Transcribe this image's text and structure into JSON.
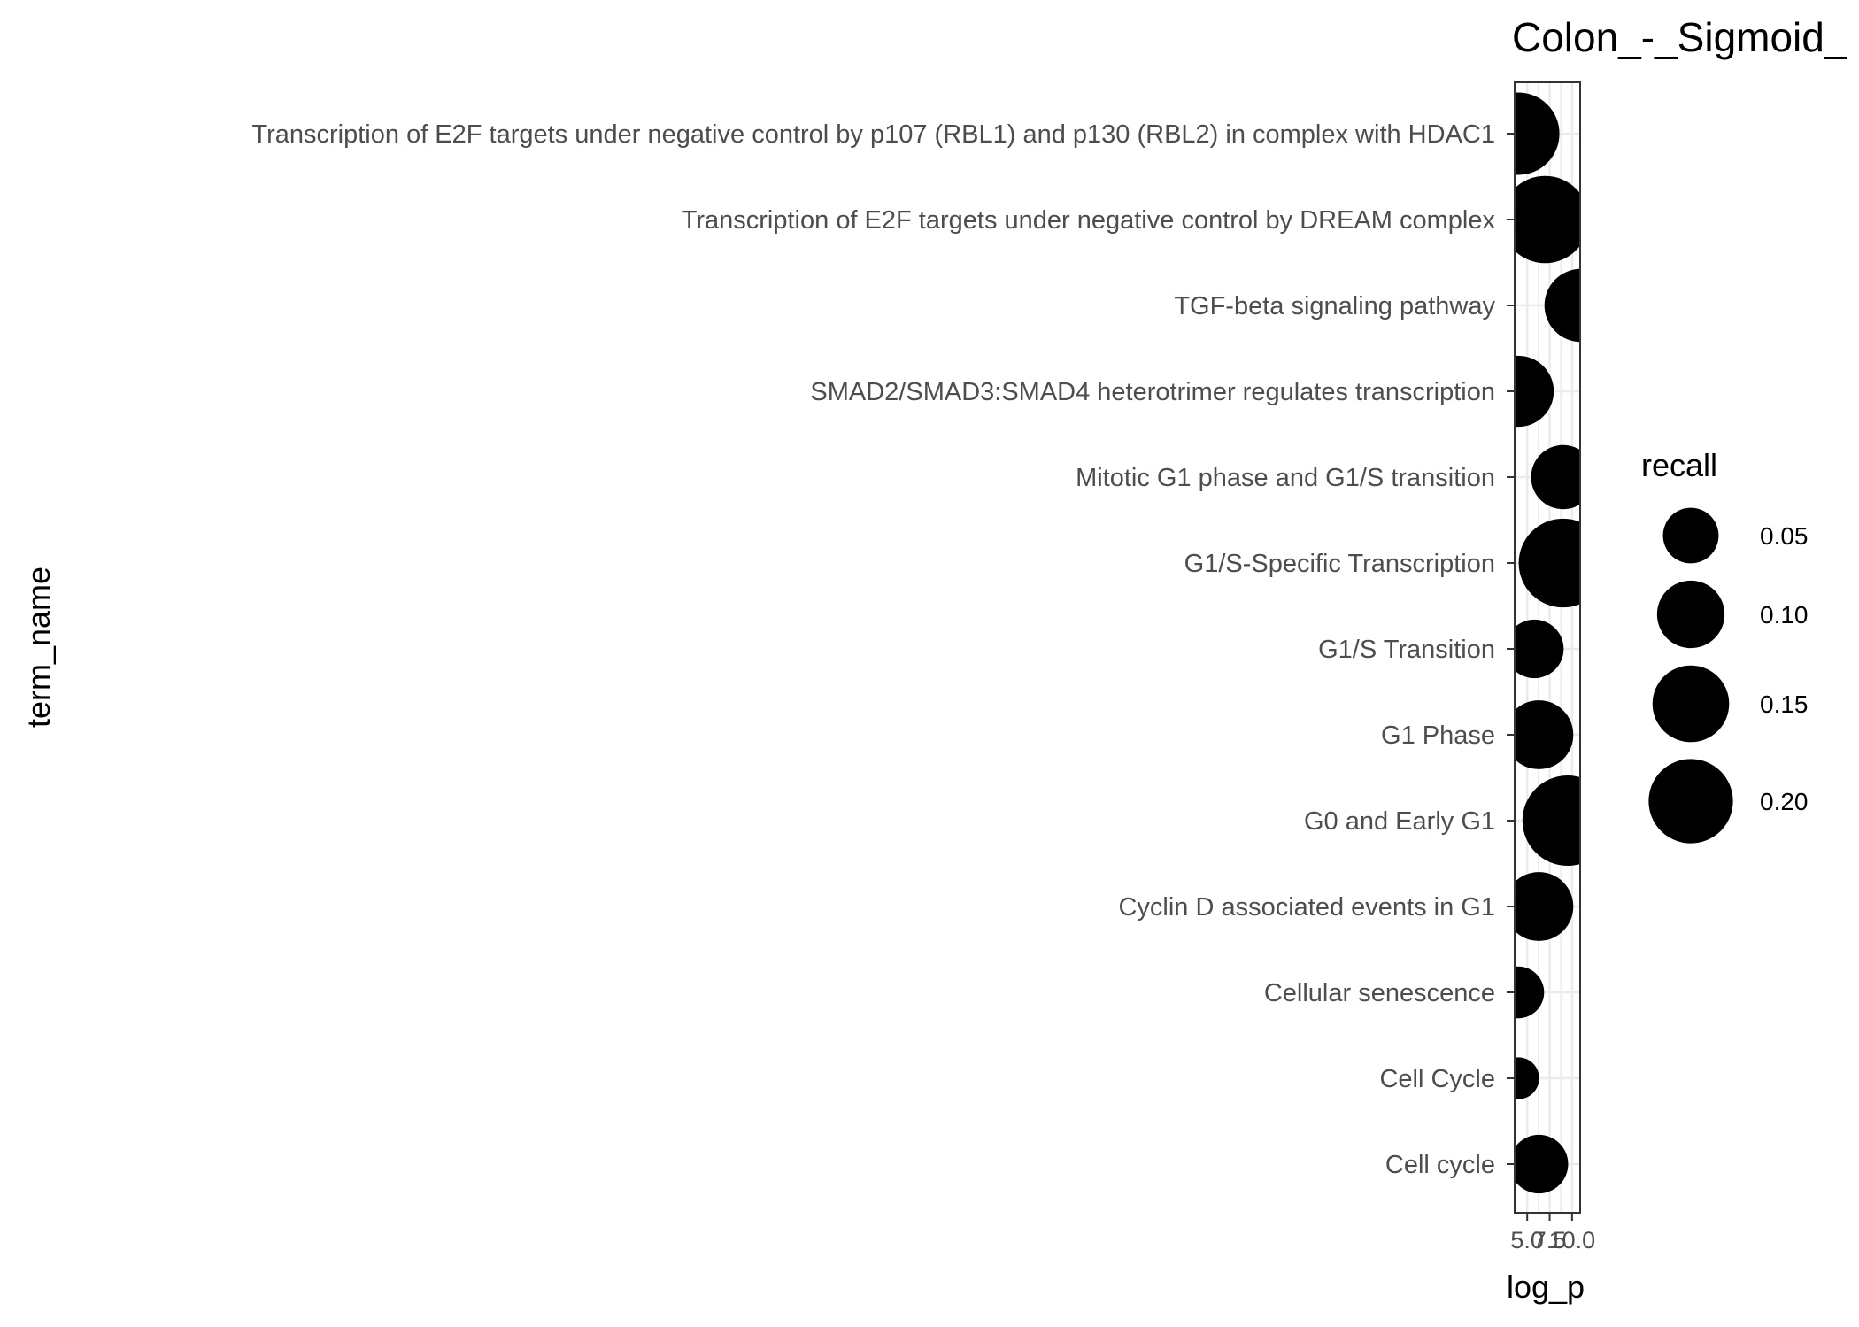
{
  "chart_data": {
    "type": "scatter",
    "title": "Colon_-_Sigmoid_",
    "xlabel": "log_p",
    "ylabel": "term_name",
    "xticks": [
      "5.0",
      "7.5",
      "10.0"
    ],
    "grid": true,
    "categories": [
      "Transcription of E2F targets under negative control by p107 (RBL1) and p130 (RBL2) in complex with HDAC1",
      "Transcription of E2F targets under negative control by DREAM complex",
      "TGF-beta signaling pathway",
      "SMAD2/SMAD3:SMAD4 heterotrimer regulates transcription",
      "Mitotic G1 phase and G1/S transition",
      "G1/S-Specific Transcription",
      "G1/S Transition",
      "G1 Phase",
      "G0 and Early G1",
      "Cyclin D associated events in G1",
      "Cellular senescence",
      "Cell Cycle",
      "Cell cycle"
    ],
    "points": [
      {
        "term": "Transcription of E2F targets under negative control by p107 (RBL1) and p130 (RBL2) in complex with HDAC1",
        "log_p": 4.0,
        "recall": 0.16
      },
      {
        "term": "Transcription of E2F targets under negative control by DREAM complex",
        "log_p": 7.0,
        "recall": 0.19
      },
      {
        "term": "TGF-beta signaling pathway",
        "log_p": 11.0,
        "recall": 0.11
      },
      {
        "term": "SMAD2/SMAD3:SMAD4 heterotrimer regulates transcription",
        "log_p": 4.0,
        "recall": 0.1
      },
      {
        "term": "Mitotic G1 phase and G1/S transition",
        "log_p": 9.0,
        "recall": 0.07
      },
      {
        "term": "G1/S-Specific Transcription",
        "log_p": 9.0,
        "recall": 0.2
      },
      {
        "term": "G1/S Transition",
        "log_p": 5.8,
        "recall": 0.05
      },
      {
        "term": "G1 Phase",
        "log_p": 6.3,
        "recall": 0.09
      },
      {
        "term": "G0 and Early G1",
        "log_p": 9.5,
        "recall": 0.21
      },
      {
        "term": "Cyclin D associated events in G1",
        "log_p": 6.3,
        "recall": 0.09
      },
      {
        "term": "Cellular senescence",
        "log_p": 4.0,
        "recall": 0.03
      },
      {
        "term": "Cell Cycle",
        "log_p": 4.0,
        "recall": 0.01
      },
      {
        "term": "Cell cycle",
        "log_p": 6.3,
        "recall": 0.05
      }
    ],
    "legend": {
      "title": "recall",
      "position": "right",
      "entries": [
        {
          "label": "0.05",
          "value": 0.05
        },
        {
          "label": "0.10",
          "value": 0.1
        },
        {
          "label": "0.15",
          "value": 0.15
        },
        {
          "label": "0.20",
          "value": 0.2
        }
      ]
    },
    "colors": {
      "point": "#000000",
      "grid": "#ebebeb",
      "panel_border": "#333333"
    }
  }
}
